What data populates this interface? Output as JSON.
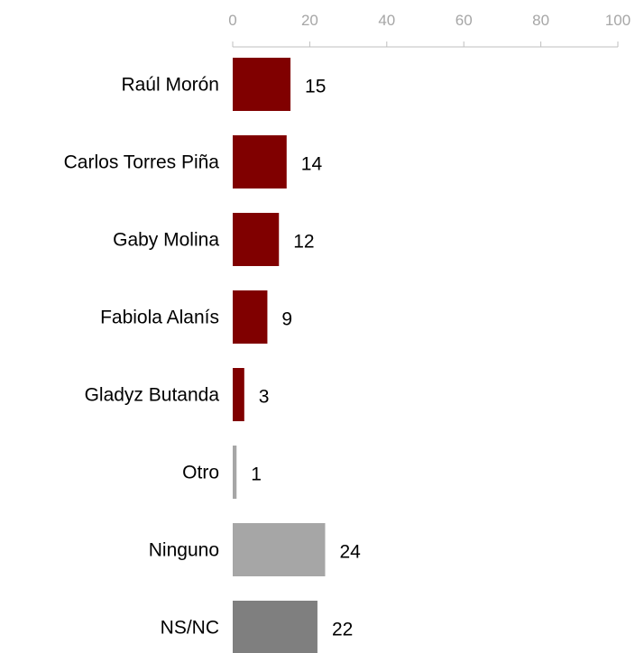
{
  "chart_data": {
    "type": "bar",
    "orientation": "horizontal",
    "title": "",
    "xlabel": "",
    "ylabel": "",
    "xlim": [
      0,
      100
    ],
    "x_ticks": [
      "0",
      "20",
      "40",
      "60",
      "80",
      "100"
    ],
    "x_axis_position": "top",
    "grid": false,
    "legend": "none",
    "categories": [
      "Raúl Morón",
      "Carlos Torres Piña",
      "Gaby Molina",
      "Fabiola Alanís",
      "Gladyz Butanda",
      "Otro",
      "Ninguno",
      "NS/NC"
    ],
    "values": [
      15,
      14,
      12,
      9,
      3,
      1,
      24,
      22
    ],
    "value_labels": [
      "15",
      "14",
      "12",
      "9",
      "3",
      "1",
      "24",
      "22"
    ],
    "bar_colors": [
      "#800000",
      "#800000",
      "#800000",
      "#800000",
      "#800000",
      "#a6a6a6",
      "#a6a6a6",
      "#7f7f7f"
    ]
  },
  "colors": {
    "axis": "#bfbfbf",
    "tick_text": "#a6a6a6",
    "label_text": "#000000"
  }
}
